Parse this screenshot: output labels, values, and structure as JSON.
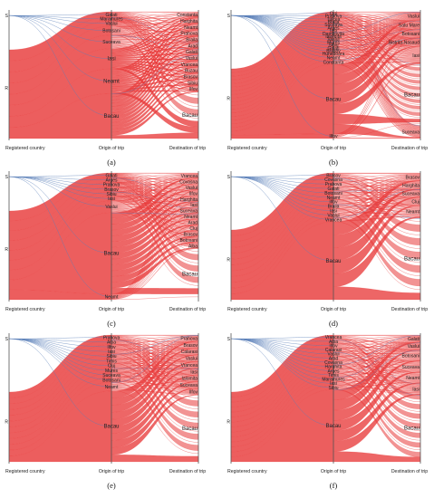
{
  "chart_data": [
    {
      "type": "parallel-sets",
      "caption": "(a)",
      "axes": [
        "Registered country",
        "Origin of trip",
        "Destination of trip"
      ],
      "registered": [
        "S",
        "R"
      ],
      "origin": [
        "Galati",
        "Maramures",
        "Vaslui",
        "Botosani",
        "Suceava",
        "Iasi",
        "Neamt",
        "Bacau"
      ],
      "destination": [
        "Constanta",
        "Harghita",
        "Neamt",
        "Prahova",
        "Braila",
        "Arad",
        "Galati",
        "Vaslui",
        "Vrancea",
        "Buzau",
        "Brasov",
        "Sibiu",
        "Ilfov",
        "Bacau"
      ],
      "origin_weights": [
        1.2,
        0.8,
        1.2,
        2,
        3,
        4.5,
        5.5,
        10
      ],
      "destination_weights": [
        0.8,
        0.8,
        0.8,
        0.8,
        0.8,
        0.8,
        0.8,
        0.8,
        0.8,
        0.8,
        0.8,
        0.8,
        0.8,
        6
      ],
      "registered_share_S": 0.3
    },
    {
      "type": "parallel-sets",
      "caption": "(b)",
      "axes": [
        "Registered country",
        "Origin of trip",
        "Destination of trip"
      ],
      "registered": [
        "S",
        "R"
      ],
      "origin": [
        "Cluj",
        "Prahova",
        "Tulcea",
        "Braila",
        "Suceava",
        "Arges",
        "Iasi",
        "Dambovita",
        "Ialomita",
        "Vaslui",
        "Mures",
        "Sibiu",
        "Galati",
        "Brasov",
        "Hunedoara",
        "Neamt",
        "Constanta",
        "Bacau",
        "Ilfov"
      ],
      "destination": [
        "Vaslui",
        "Satu Mare",
        "Botosani",
        "Bistrita-Nasaud",
        "Iasi",
        "Bacau",
        "Suceava"
      ],
      "origin_weights": [
        0.5,
        0.5,
        0.5,
        0.5,
        0.5,
        0.5,
        0.5,
        0.5,
        0.5,
        0.5,
        0.5,
        0.5,
        0.5,
        0.5,
        0.5,
        0.8,
        0.8,
        12,
        0.8
      ],
      "destination_weights": [
        1,
        1,
        1,
        1,
        2,
        7,
        1.5
      ],
      "registered_share_S": 0.45
    },
    {
      "type": "parallel-sets",
      "caption": "(c)",
      "axes": [
        "Registered country",
        "Origin of trip",
        "Destination of trip"
      ],
      "registered": [
        "S",
        "R"
      ],
      "origin": [
        "Galati",
        "Arges",
        "Prahova",
        "Brasov",
        "Sibiu",
        "Iasi",
        "Vaslui",
        "Bacau",
        "Neamt"
      ],
      "destination": [
        "Vrancea",
        "Covasna",
        "Vaslui",
        "Ilfov",
        "Harghita",
        "Iasi",
        "Suceava",
        "Neamt",
        "Arad",
        "Cluj",
        "Brasov",
        "Botosani",
        "Alba",
        "Bacau"
      ],
      "origin_weights": [
        0.8,
        0.8,
        0.8,
        0.8,
        0.8,
        0.8,
        2,
        14,
        1
      ],
      "destination_weights": [
        0.8,
        0.8,
        0.8,
        0.8,
        0.8,
        0.8,
        0.8,
        0.8,
        0.8,
        0.8,
        0.8,
        0.8,
        0.8,
        7
      ],
      "registered_share_S": 0.3
    },
    {
      "type": "parallel-sets",
      "caption": "(d)",
      "axes": [
        "Registered country",
        "Origin of trip",
        "Destination of trip"
      ],
      "registered": [
        "S",
        "R"
      ],
      "origin": [
        "Brasov",
        "Covasna",
        "Prahova",
        "Galati",
        "Botosani",
        "Neamt",
        "Ilfov",
        "Braila",
        "Iasi",
        "Vaslui",
        "Vrancea",
        "Bacau"
      ],
      "destination": [
        "Brasov",
        "Harghita",
        "Suceava",
        "Cluj",
        "Neamt",
        "Bacau"
      ],
      "origin_weights": [
        0.8,
        0.8,
        0.8,
        0.8,
        0.8,
        0.8,
        0.8,
        0.8,
        0.8,
        0.8,
        0.8,
        14
      ],
      "destination_weights": [
        1,
        1,
        1,
        1,
        1.5,
        10
      ],
      "registered_share_S": 0.45
    },
    {
      "type": "parallel-sets",
      "caption": "(e)",
      "axes": [
        "Registered country",
        "Origin of trip",
        "Destination of trip"
      ],
      "registered": [
        "S",
        "R"
      ],
      "origin": [
        "Prahova",
        "Alba",
        "Ilfov",
        "Iasi",
        "Sibiu",
        "Timis",
        "Cluj",
        "Mures",
        "Suceava",
        "Botosani",
        "Neamt",
        "Bacau"
      ],
      "destination": [
        "Prahova",
        "Brasov",
        "Calarasi",
        "Vaslui",
        "Vrancea",
        "Iasi",
        "Ialomita",
        "Suceava",
        "Ilfov",
        "Bacau"
      ],
      "origin_weights": [
        0.8,
        0.8,
        0.8,
        0.8,
        0.8,
        0.8,
        0.8,
        0.8,
        0.8,
        0.8,
        1.5,
        12
      ],
      "destination_weights": [
        0.8,
        0.8,
        0.8,
        0.8,
        0.8,
        0.8,
        0.8,
        0.8,
        0.8,
        8
      ],
      "registered_share_S": 0.45
    },
    {
      "type": "parallel-sets",
      "caption": "(f)",
      "axes": [
        "Registered country",
        "Origin of trip",
        "Destination of trip"
      ],
      "registered": [
        "S",
        "R"
      ],
      "origin": [
        "Vrancea",
        "Alba",
        "Ilfov",
        "Calarasi",
        "Vaslui",
        "Arad",
        "Covasna",
        "Harghita",
        "Arges",
        "Timis",
        "Maramures",
        "Iasi",
        "Sibiu",
        "Bacau"
      ],
      "destination": [
        "Galati",
        "Vaslui",
        "Botosani",
        "Suceava",
        "Neamt",
        "Iasi",
        "Bacau"
      ],
      "origin_weights": [
        0.7,
        0.7,
        0.7,
        0.7,
        0.7,
        0.7,
        0.7,
        0.7,
        0.7,
        0.7,
        0.7,
        0.7,
        0.7,
        12
      ],
      "destination_weights": [
        1,
        1,
        1.5,
        1.5,
        1.5,
        1.5,
        9
      ],
      "registered_share_S": 0.45
    }
  ],
  "colors": {
    "flow_red": "#e83b3b",
    "flow_blue": "#5a7fb8",
    "axis": "#555555"
  }
}
